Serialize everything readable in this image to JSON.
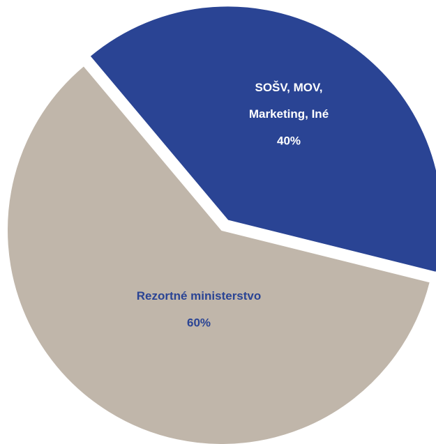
{
  "chart_data": {
    "type": "pie",
    "categories": [
      "Rezortné ministerstvo",
      "SOŠV, MOV,\nMarketing, Iné"
    ],
    "values": [
      60,
      40
    ],
    "value_labels": [
      "60%",
      "40%"
    ],
    "colors": [
      "#c0b6aa",
      "#2a4494"
    ],
    "label_colors": [
      "#2a4494",
      "#ffffff"
    ]
  }
}
